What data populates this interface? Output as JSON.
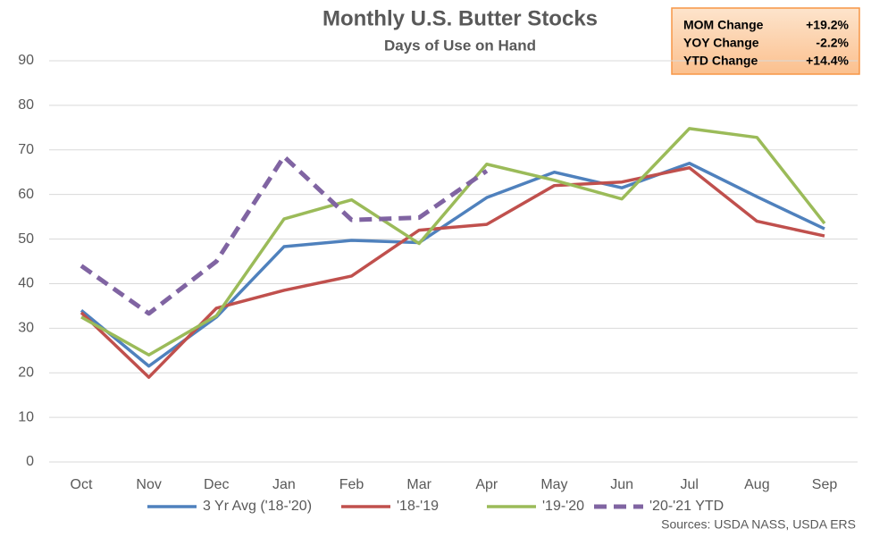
{
  "chart_data": {
    "type": "line",
    "title": "Monthly U.S. Butter Stocks",
    "subtitle": "Days of Use on Hand",
    "source": "Sources: USDA NASS, USDA ERS",
    "categories": [
      "Oct",
      "Nov",
      "Dec",
      "Jan",
      "Feb",
      "Mar",
      "Apr",
      "May",
      "Jun",
      "Jul",
      "Aug",
      "Sep"
    ],
    "series": [
      {
        "name": "3 Yr Avg ('18-'20)",
        "color": "#4f81bd",
        "values": [
          34,
          21.5,
          32.5,
          48.3,
          49.7,
          49.2,
          59.3,
          65,
          61.5,
          67,
          59.5,
          52.3
        ]
      },
      {
        "name": "'18-'19",
        "color": "#c0504d",
        "values": [
          33.5,
          19,
          34.5,
          38.5,
          41.7,
          52,
          53.3,
          62,
          62.8,
          66,
          54,
          50.7
        ]
      },
      {
        "name": "'19-'20",
        "color": "#9bbb59",
        "values": [
          32.5,
          24,
          32.8,
          54.5,
          58.8,
          49,
          66.8,
          63.2,
          59,
          74.8,
          72.8,
          53.5
        ]
      },
      {
        "name": "'20-'21 YTD",
        "color": "#8064a2",
        "dashed": true,
        "values": [
          44,
          33.3,
          45,
          68.5,
          54.3,
          54.8,
          65.3,
          null,
          null,
          null,
          null,
          null
        ]
      }
    ],
    "ylim": [
      0,
      90
    ],
    "yticks": [
      0,
      10,
      20,
      30,
      40,
      50,
      60,
      70,
      80,
      90
    ],
    "grid": true,
    "summary": [
      {
        "label": "MOM Change",
        "value": "+19.2%"
      },
      {
        "label": "YOY Change",
        "value": "-2.2%"
      },
      {
        "label": "YTD Change",
        "value": "+14.4%"
      }
    ]
  }
}
